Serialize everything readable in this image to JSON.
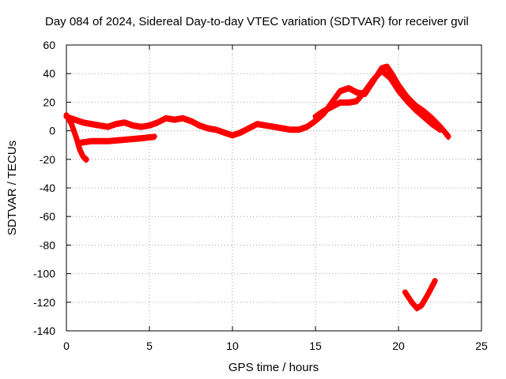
{
  "chart_data": {
    "type": "line",
    "title": "Day 084 of 2024, Sidereal Day-to-day VTEC variation (SDTVAR) for receiver gvil",
    "xlabel": "GPS time / hours",
    "ylabel": "SDTVAR / TECUs",
    "xlim": [
      0,
      25
    ],
    "ylim": [
      -140,
      60
    ],
    "xticks": [
      0,
      5,
      10,
      15,
      20,
      25
    ],
    "yticks": [
      -140,
      -120,
      -100,
      -80,
      -60,
      -40,
      -20,
      0,
      20,
      40,
      60
    ],
    "grid": true,
    "legend": "none",
    "series_color": "#ff0000",
    "series": [
      {
        "name": "main-trace",
        "points": [
          [
            0.0,
            10
          ],
          [
            0.5,
            8
          ],
          [
            1.0,
            6
          ],
          [
            1.5,
            5
          ],
          [
            2.0,
            4
          ],
          [
            2.5,
            3
          ],
          [
            3.0,
            5
          ],
          [
            3.5,
            6
          ],
          [
            4.0,
            4
          ],
          [
            4.5,
            3
          ],
          [
            5.0,
            4
          ],
          [
            5.5,
            6
          ],
          [
            6.0,
            9
          ],
          [
            6.5,
            8
          ],
          [
            7.0,
            9
          ],
          [
            7.5,
            7
          ],
          [
            8.0,
            4
          ],
          [
            8.5,
            2
          ],
          [
            9.0,
            1
          ],
          [
            9.5,
            -1
          ],
          [
            10.0,
            -3
          ],
          [
            10.5,
            -1
          ],
          [
            11.0,
            2
          ],
          [
            11.5,
            5
          ],
          [
            12.0,
            4
          ],
          [
            12.5,
            3
          ],
          [
            13.0,
            2
          ],
          [
            13.5,
            1
          ],
          [
            14.0,
            1
          ],
          [
            14.5,
            3
          ],
          [
            15.0,
            7
          ],
          [
            15.5,
            12
          ],
          [
            16.0,
            20
          ],
          [
            16.5,
            28
          ],
          [
            17.0,
            30
          ],
          [
            17.5,
            27
          ],
          [
            18.0,
            26
          ],
          [
            18.5,
            35
          ],
          [
            19.0,
            44
          ],
          [
            19.3,
            45
          ],
          [
            19.6,
            40
          ],
          [
            20.0,
            32
          ],
          [
            20.5,
            24
          ],
          [
            21.0,
            18
          ],
          [
            21.5,
            14
          ],
          [
            22.0,
            9
          ],
          [
            22.5,
            3
          ],
          [
            22.8,
            -1
          ],
          [
            23.0,
            -4
          ]
        ]
      },
      {
        "name": "second-branch",
        "points": [
          [
            15.0,
            10
          ],
          [
            15.5,
            14
          ],
          [
            16.0,
            17
          ],
          [
            16.5,
            20
          ],
          [
            17.0,
            20
          ],
          [
            17.5,
            21
          ],
          [
            18.0,
            28
          ],
          [
            18.5,
            36
          ],
          [
            19.0,
            42
          ],
          [
            19.5,
            37
          ],
          [
            20.0,
            28
          ],
          [
            20.5,
            21
          ],
          [
            21.0,
            15
          ],
          [
            21.5,
            10
          ],
          [
            22.0,
            5
          ],
          [
            22.5,
            1
          ]
        ]
      },
      {
        "name": "early-dip",
        "points": [
          [
            0.0,
            11
          ],
          [
            0.3,
            5
          ],
          [
            0.6,
            -5
          ],
          [
            0.8,
            -13
          ],
          [
            1.0,
            -18
          ],
          [
            1.2,
            -20
          ]
        ]
      },
      {
        "name": "low-arc",
        "points": [
          [
            0.9,
            -8
          ],
          [
            1.5,
            -7
          ],
          [
            2.5,
            -7
          ],
          [
            3.5,
            -6
          ],
          [
            4.5,
            -5
          ],
          [
            5.3,
            -4
          ]
        ]
      },
      {
        "name": "isolated-v",
        "points": [
          [
            20.4,
            -113
          ],
          [
            20.8,
            -120
          ],
          [
            21.1,
            -124
          ],
          [
            21.4,
            -122
          ],
          [
            21.8,
            -114
          ],
          [
            22.2,
            -105
          ]
        ]
      }
    ]
  }
}
